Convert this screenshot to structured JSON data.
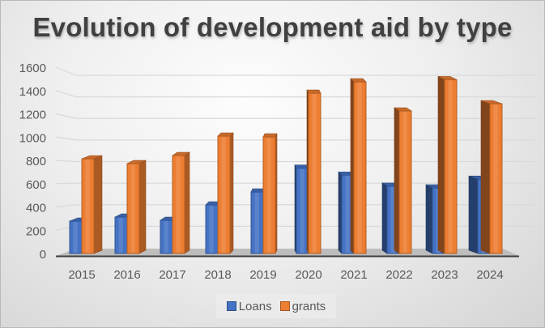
{
  "chart_data": {
    "type": "bar",
    "title": "Evolution of development aid by type",
    "xlabel": "",
    "ylabel": "",
    "categories": [
      "2015",
      "2016",
      "2017",
      "2018",
      "2019",
      "2020",
      "2021",
      "2022",
      "2023",
      "2024"
    ],
    "series": [
      {
        "name": "Loans",
        "color": "#4472C4",
        "values": [
          285,
          320,
          292,
          424,
          535,
          740,
          680,
          585,
          570,
          645
        ]
      },
      {
        "name": "grants",
        "color": "#ED7D31",
        "values": [
          820,
          779,
          848,
          1015,
          1008,
          1384,
          1481,
          1231,
          1500,
          1293
        ]
      }
    ],
    "ylim": [
      0,
      1600
    ],
    "yticks": [
      "0",
      "200",
      "400",
      "600",
      "800",
      "1000",
      "1200",
      "1400",
      "1600"
    ],
    "grid": true,
    "legend": "bottom",
    "style": "3d-clustered-column"
  }
}
